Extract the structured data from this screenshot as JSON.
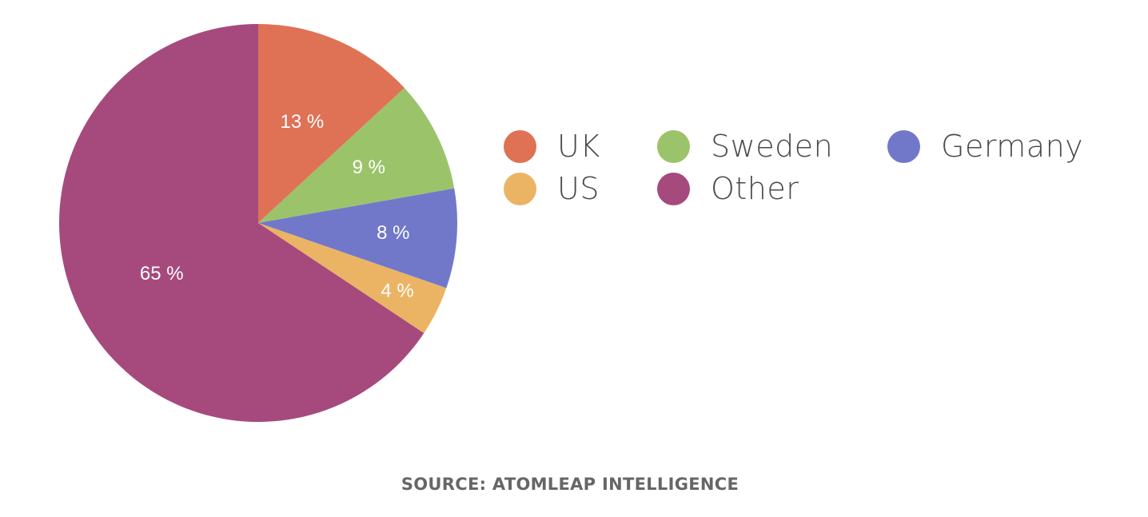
{
  "chart_data": {
    "type": "pie",
    "slices": [
      {
        "label": "UK",
        "value": 13,
        "display": "13 %",
        "color": "#df7155"
      },
      {
        "label": "Sweden",
        "value": 9,
        "display": "9 %",
        "color": "#9bc46a"
      },
      {
        "label": "Germany",
        "value": 8,
        "display": "8 %",
        "color": "#7178c9"
      },
      {
        "label": "US",
        "value": 4,
        "display": "4 %",
        "color": "#ebb464"
      },
      {
        "label": "Other",
        "value": 65,
        "display": "65 %",
        "color": "#a64a7e"
      }
    ],
    "legend": {
      "placement": "right",
      "entries": [
        "UK",
        "Sweden",
        "Germany",
        "US",
        "Other"
      ]
    },
    "source": "SOURCE: ATOMLEAP INTELLIGENCE"
  }
}
